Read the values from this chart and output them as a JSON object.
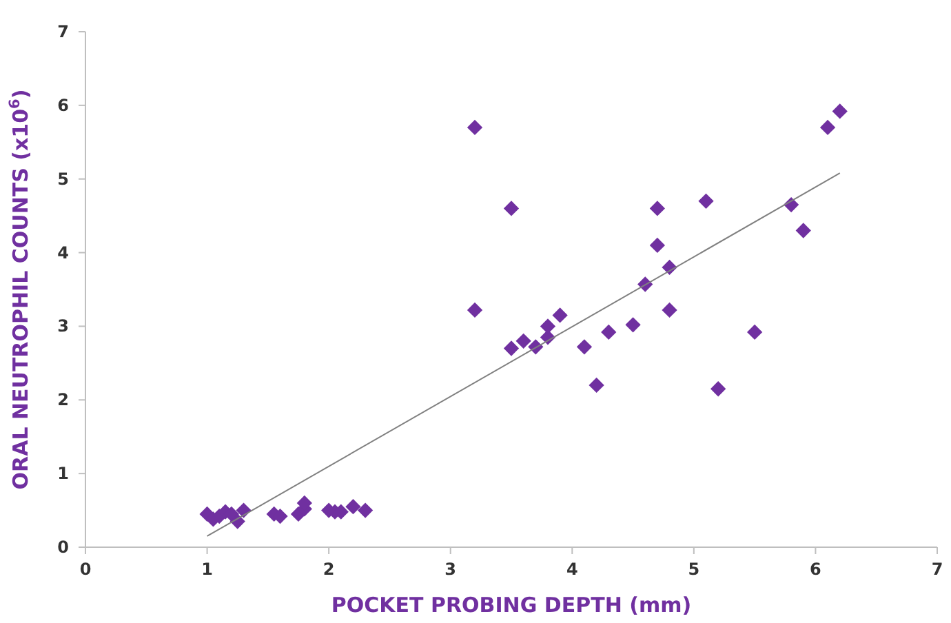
{
  "chart_data": {
    "type": "scatter",
    "xlabel": "POCKET PROBING DEPTH (mm)",
    "ylabel": "ORAL NEUTROPHIL COUNTS (x10$^{6}$)",
    "xlim": [
      0,
      7
    ],
    "ylim": [
      0,
      7
    ],
    "xticks": [
      0,
      1,
      2,
      3,
      4,
      5,
      6,
      7
    ],
    "yticks": [
      0,
      1,
      2,
      3,
      4,
      5,
      6,
      7
    ],
    "grid": false,
    "marker": "diamond",
    "series": [
      {
        "color": "#7030a0",
        "x": [
          1.0,
          1.05,
          1.1,
          1.15,
          1.2,
          1.25,
          1.3,
          1.55,
          1.6,
          1.75,
          1.8,
          1.8,
          2.0,
          2.05,
          2.1,
          2.2,
          2.3,
          3.2,
          3.2,
          3.5,
          3.5,
          3.6,
          3.7,
          3.8,
          3.8,
          3.9,
          4.1,
          4.2,
          4.3,
          4.5,
          4.6,
          4.7,
          4.7,
          4.8,
          4.8,
          5.1,
          5.2,
          5.5,
          5.8,
          5.9,
          6.1,
          6.2
        ],
        "values": [
          0.45,
          0.38,
          0.42,
          0.48,
          0.45,
          0.35,
          0.5,
          0.45,
          0.42,
          0.45,
          0.52,
          0.6,
          0.5,
          0.48,
          0.48,
          0.55,
          0.5,
          5.7,
          3.22,
          4.6,
          2.7,
          2.8,
          2.72,
          2.85,
          3.0,
          3.15,
          2.72,
          2.2,
          2.92,
          3.02,
          3.57,
          4.1,
          4.6,
          3.8,
          3.22,
          4.7,
          2.15,
          2.92,
          4.65,
          4.3,
          5.7,
          5.92
        ]
      },
      {
        "type": "line",
        "marker": "none",
        "color": "#808080",
        "x": [
          1.0,
          6.2
        ],
        "values": [
          0.15,
          5.08
        ]
      }
    ]
  }
}
